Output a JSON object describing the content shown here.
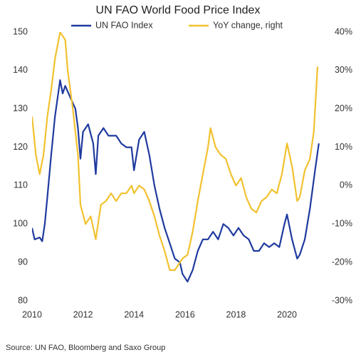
{
  "chart_data": {
    "type": "line",
    "title": "UN FAO World Food Price Index",
    "source": "Source:  UN FAO, Bloomberg and Saxo Group",
    "xlim": [
      2010,
      2021.45
    ],
    "xticks": [
      2010,
      2012,
      2014,
      2016,
      2018,
      2020
    ],
    "ylim": [
      80,
      150
    ],
    "yticks": [
      80,
      90,
      100,
      110,
      120,
      130,
      140,
      150
    ],
    "y2lim": [
      -30,
      40
    ],
    "y2ticks": [
      {
        "value": -30,
        "label": "-30%"
      },
      {
        "value": -20,
        "label": "-20%"
      },
      {
        "value": -10,
        "label": "-10%"
      },
      {
        "value": 0,
        "label": "0%"
      },
      {
        "value": 10,
        "label": "10%"
      },
      {
        "value": 20,
        "label": "20%"
      },
      {
        "value": 30,
        "label": "30%"
      },
      {
        "value": 40,
        "label": "40%"
      }
    ],
    "grid": false,
    "legend": "top",
    "series": [
      {
        "name": "UN FAO Index",
        "color": "#1f3a9e",
        "x": [
          2010.0,
          2010.1,
          2010.3,
          2010.4,
          2010.5,
          2010.6,
          2010.75,
          2010.9,
          2011.1,
          2011.2,
          2011.3,
          2011.5,
          2011.7,
          2011.8,
          2011.9,
          2012.0,
          2012.2,
          2012.4,
          2012.5,
          2012.6,
          2012.8,
          2013.0,
          2013.3,
          2013.5,
          2013.7,
          2013.9,
          2014.0,
          2014.2,
          2014.4,
          2014.6,
          2014.8,
          2015.0,
          2015.2,
          2015.4,
          2015.6,
          2015.8,
          2015.9,
          2016.1,
          2016.3,
          2016.5,
          2016.7,
          2016.9,
          2017.1,
          2017.3,
          2017.5,
          2017.7,
          2017.9,
          2018.1,
          2018.3,
          2018.5,
          2018.7,
          2018.9,
          2019.1,
          2019.3,
          2019.5,
          2019.7,
          2019.9,
          2020.0,
          2020.2,
          2020.4,
          2020.5,
          2020.7,
          2020.9,
          2021.1,
          2021.25
        ],
        "values": [
          99,
          96,
          96.5,
          95.5,
          100,
          107,
          118,
          128,
          137.5,
          134,
          136,
          133,
          130,
          125,
          117,
          124,
          126,
          121,
          113,
          123,
          125,
          123,
          123,
          121,
          120,
          120,
          114,
          122,
          124,
          118,
          110,
          104,
          99,
          95,
          91,
          90,
          87,
          85,
          88,
          93,
          96,
          96,
          98,
          96,
          100,
          99,
          97,
          99,
          97,
          96,
          93,
          93,
          95,
          94,
          95,
          94,
          100,
          102.5,
          96,
          91,
          92,
          96,
          104,
          114,
          121
        ]
      },
      {
        "name": "YoY change, right",
        "color": "#f2c12e",
        "axis": "y2",
        "x": [
          2010.0,
          2010.15,
          2010.3,
          2010.45,
          2010.6,
          2010.75,
          2010.9,
          2011.1,
          2011.3,
          2011.4,
          2011.6,
          2011.8,
          2011.9,
          2012.1,
          2012.3,
          2012.5,
          2012.7,
          2012.9,
          2013.1,
          2013.3,
          2013.5,
          2013.7,
          2013.9,
          2014.0,
          2014.2,
          2014.4,
          2014.6,
          2014.8,
          2015.0,
          2015.2,
          2015.4,
          2015.6,
          2015.8,
          2015.9,
          2016.1,
          2016.3,
          2016.5,
          2016.7,
          2016.9,
          2017.0,
          2017.2,
          2017.4,
          2017.6,
          2017.8,
          2018.0,
          2018.2,
          2018.4,
          2018.6,
          2018.8,
          2019.0,
          2019.2,
          2019.4,
          2019.6,
          2019.8,
          2020.0,
          2020.2,
          2020.4,
          2020.5,
          2020.7,
          2020.9,
          2021.05,
          2021.2
        ],
        "values": [
          18,
          8,
          3,
          8,
          18,
          25,
          33,
          40,
          38,
          30,
          20,
          8,
          -5,
          -10,
          -8,
          -14,
          -5,
          -4,
          -2,
          -4,
          -2,
          -2,
          0,
          -2,
          0,
          -1,
          -4,
          -8,
          -13,
          -17,
          -22,
          -22,
          -20,
          -19,
          -18,
          -12,
          -4,
          3,
          10,
          15,
          10,
          8,
          7,
          3,
          0,
          2,
          -3,
          -6,
          -7,
          -4,
          -3,
          -1,
          -2,
          3,
          11,
          5,
          -4,
          -3,
          4,
          7,
          14,
          31
        ]
      }
    ]
  }
}
